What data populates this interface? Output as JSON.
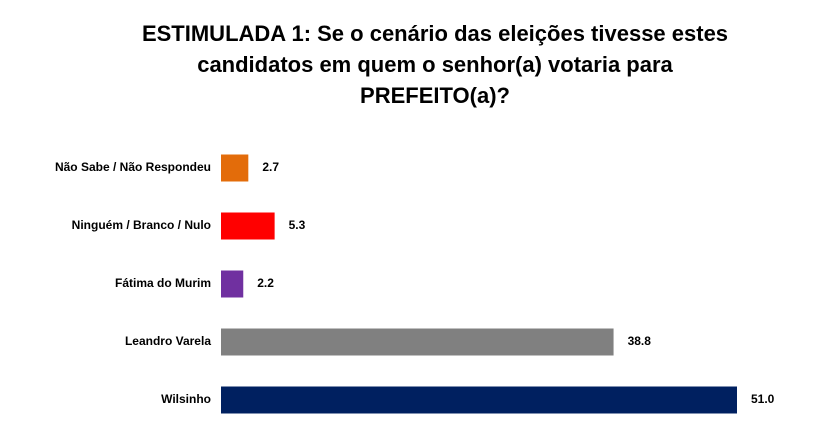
{
  "chart_data": {
    "type": "hbar",
    "title": "ESTIMULADA 1: Se o cenário das eleições tivesse estes candidatos em quem o senhor(a) votaria para PREFEITO(a)?",
    "categories": [
      "Não Sabe / Não Respondeu",
      "Ninguém / Branco / Nulo",
      "Fátima do Murim",
      "Leandro Varela",
      "Wilsinho"
    ],
    "values": [
      2.7,
      5.3,
      2.2,
      38.8,
      51.0
    ],
    "value_labels": [
      "2.7",
      "5.3",
      "2.2",
      "38.8",
      "51.0"
    ],
    "colors": [
      "#e36c0a",
      "#ff0000",
      "#7030a0",
      "#808080",
      "#002060"
    ]
  }
}
